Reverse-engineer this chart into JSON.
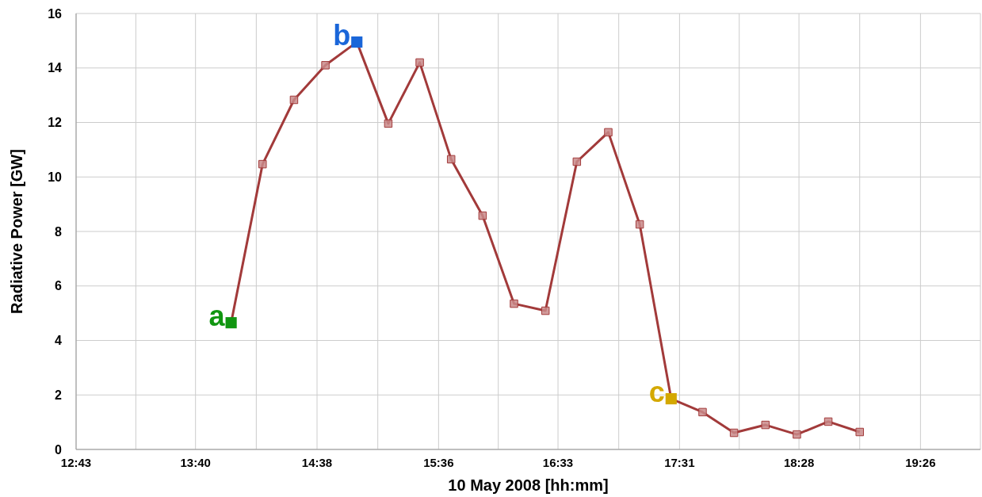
{
  "chart_data": {
    "type": "line",
    "xlabel": "10 May 2008 [hh:mm]",
    "ylabel": "Radiative Power [GW]",
    "series": [
      {
        "color": "#a23a3a",
        "marker": "square",
        "x": [
          13.95,
          14.2,
          14.45,
          14.7,
          14.95,
          15.2,
          15.45,
          15.7,
          15.95,
          16.2,
          16.45,
          16.7,
          16.95,
          17.2,
          17.45,
          17.7,
          17.95,
          18.2,
          18.45,
          18.7,
          18.95
        ],
        "values": [
          4.65,
          10.47,
          12.83,
          14.1,
          14.95,
          11.96,
          14.2,
          10.65,
          8.58,
          5.35,
          5.09,
          10.56,
          11.64,
          8.26,
          1.86,
          1.37,
          0.61,
          0.9,
          0.55,
          1.02,
          0.64
        ]
      },
      {
        "type": "scatter",
        "color": "#119611",
        "marker": "square",
        "x": [
          13.95
        ],
        "values": [
          4.65
        ]
      },
      {
        "type": "scatter",
        "color": "#1a66d9",
        "marker": "square",
        "x": [
          14.95
        ],
        "values": [
          14.95
        ]
      },
      {
        "type": "scatter",
        "color": "#d4a800",
        "marker": "square",
        "x": [
          17.45
        ],
        "values": [
          1.86
        ]
      }
    ],
    "annotations": [
      {
        "text": "a",
        "x": 13.95,
        "y": 4.65
      },
      {
        "text": "b",
        "x": 14.95,
        "y": 14.95
      },
      {
        "text": "c",
        "x": 17.45,
        "y": 1.86
      }
    ],
    "xlim": [
      12.7167,
      19.91
    ],
    "xticks": [
      {
        "value": 12.7167,
        "label": "12:43"
      },
      {
        "value": 13.1917,
        "label": null
      },
      {
        "value": 13.6667,
        "label": "13:40"
      },
      {
        "value": 14.15,
        "label": null
      },
      {
        "value": 14.6333,
        "label": "14:38"
      },
      {
        "value": 15.1167,
        "label": null
      },
      {
        "value": 15.6,
        "label": "15:36"
      },
      {
        "value": 16.075,
        "label": null
      },
      {
        "value": 16.55,
        "label": "16:33"
      },
      {
        "value": 17.0333,
        "label": null
      },
      {
        "value": 17.5167,
        "label": "17:31"
      },
      {
        "value": 17.9917,
        "label": null
      },
      {
        "value": 18.4667,
        "label": "18:28"
      },
      {
        "value": 18.95,
        "label": null
      },
      {
        "value": 19.4333,
        "label": "19:26"
      },
      {
        "value": 19.91,
        "label": null
      }
    ],
    "ylim": [
      0,
      16
    ],
    "yticks": [
      0,
      2,
      4,
      6,
      8,
      10,
      12,
      14,
      16
    ],
    "grid": true
  }
}
